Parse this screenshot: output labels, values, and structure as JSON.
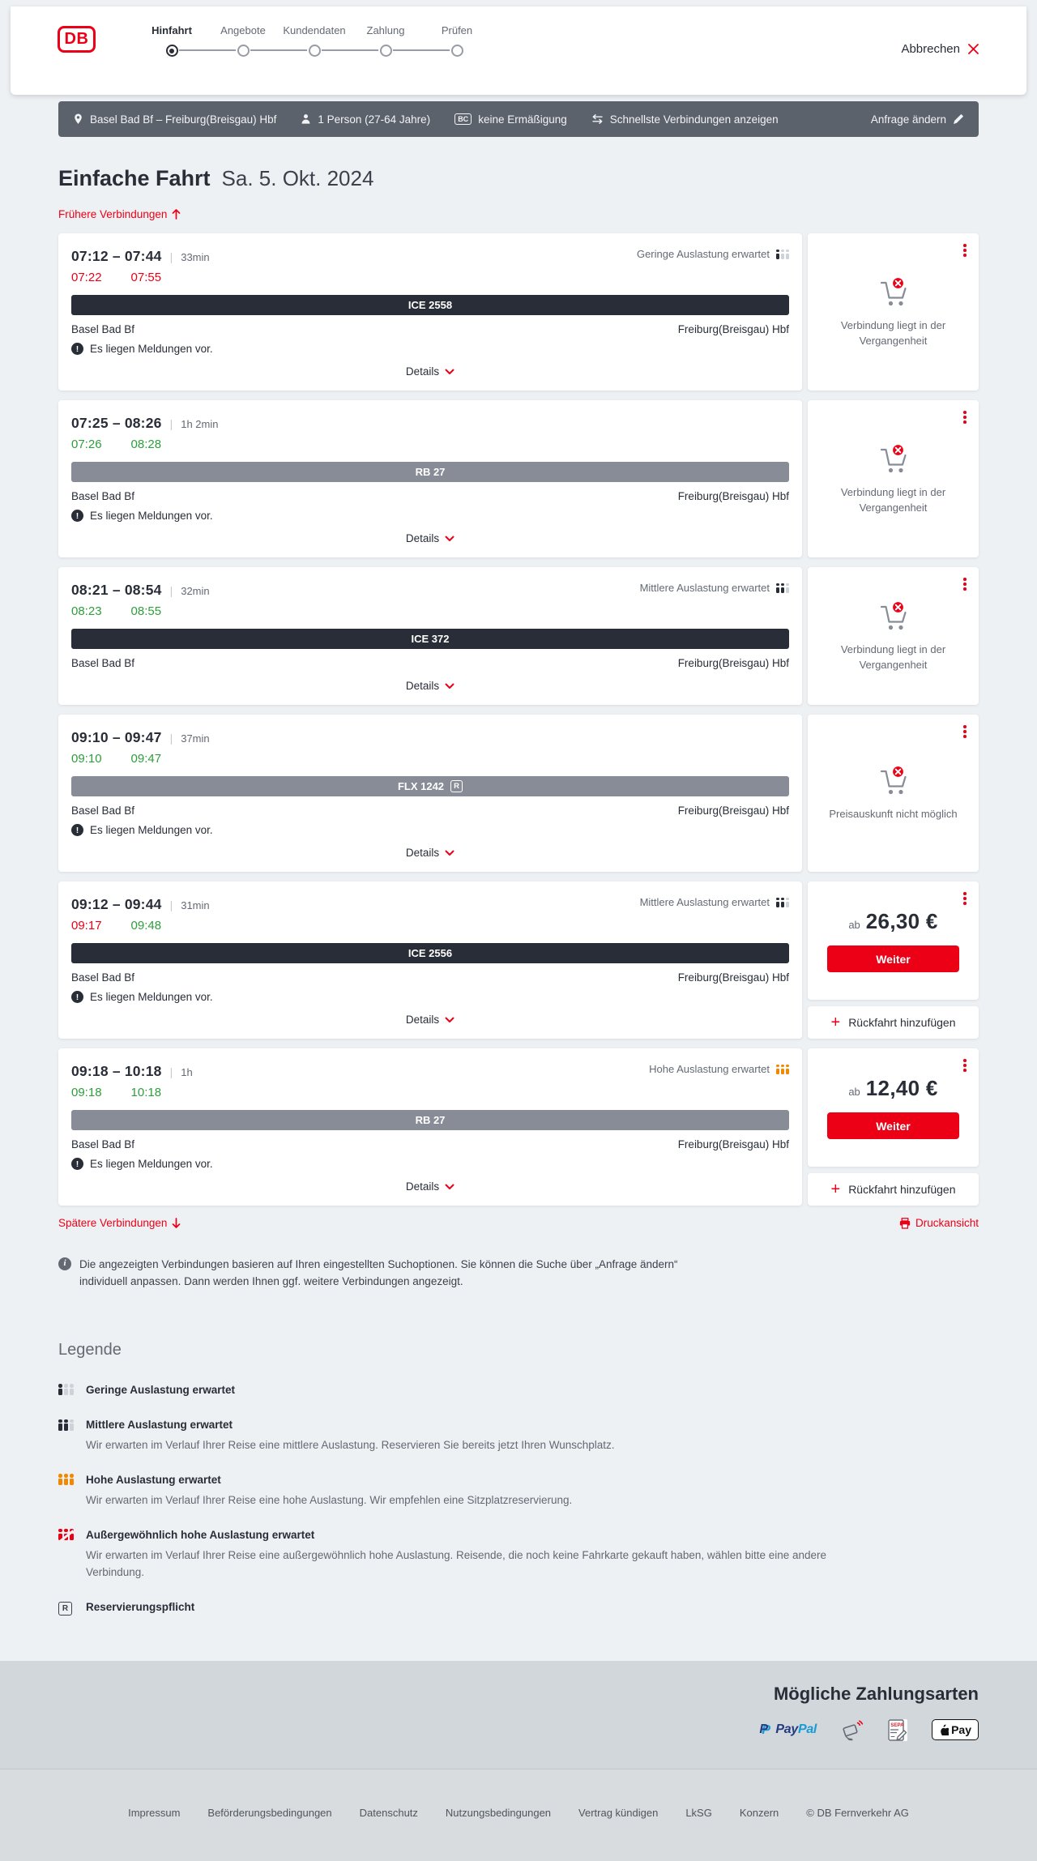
{
  "header": {
    "logo_text": "DB",
    "steps": [
      {
        "label": "Hinfahrt",
        "state": "active"
      },
      {
        "label": "Angebote",
        "state": "upcoming"
      },
      {
        "label": "Kundendaten",
        "state": "upcoming"
      },
      {
        "label": "Zahlung",
        "state": "upcoming"
      },
      {
        "label": "Prüfen",
        "state": "upcoming"
      }
    ],
    "cancel_label": "Abbrechen"
  },
  "summary_bar": {
    "route": "Basel Bad Bf – Freiburg(Breisgau) Hbf",
    "passengers": "1 Person (27-64 Jahre)",
    "bahncard_badge": "BC",
    "discount": "keine Ermäßigung",
    "fastest_connections": "Schnellste Verbindungen anzeigen",
    "change_request": "Anfrage ändern"
  },
  "results": {
    "title": "Einfache Fahrt",
    "date": "Sa. 5. Okt. 2024",
    "earlier_label": "Frühere Verbindungen",
    "later_label": "Spätere Verbindungen",
    "print_label": "Druckansicht",
    "details_label": "Details",
    "messages_text": "Es liegen Meldungen vor.",
    "reservation_badge": "R",
    "price_prefix": "ab",
    "continue_label": "Weiter",
    "add_return_label": "Rückfahrt hinzufügen",
    "info_note": "Die angezeigten Verbindungen basieren auf Ihren eingestellten Suchoptionen. Sie können die Suche über „Anfrage ändern“ individuell anpassen. Dann werden Ihnen ggf. weitere Verbindungen angezeigt."
  },
  "connections": [
    {
      "times": "07:12 – 07:44",
      "duration": "33min",
      "occupancy_label": "Geringe Auslastung erwartet",
      "occupancy_level": "low",
      "rt_departure": {
        "time": "07:22",
        "status": "delayed"
      },
      "rt_arrival": {
        "time": "07:55",
        "status": "delayed"
      },
      "train": {
        "label": "ICE 2558",
        "style": "dark",
        "reservation_required": false
      },
      "from": "Basel Bad Bf",
      "to": "Freiburg(Breisgau) Hbf",
      "has_messages": true,
      "action": {
        "type": "past",
        "text": "Verbindung liegt in der Vergangenheit"
      }
    },
    {
      "times": "07:25 – 08:26",
      "duration": "1h 2min",
      "occupancy_label": "",
      "occupancy_level": "",
      "rt_departure": {
        "time": "07:26",
        "status": "ontime"
      },
      "rt_arrival": {
        "time": "08:28",
        "status": "ontime"
      },
      "train": {
        "label": "RB 27",
        "style": "gray",
        "reservation_required": false
      },
      "from": "Basel Bad Bf",
      "to": "Freiburg(Breisgau) Hbf",
      "has_messages": true,
      "action": {
        "type": "past",
        "text": "Verbindung liegt in der Vergangenheit"
      }
    },
    {
      "times": "08:21 – 08:54",
      "duration": "32min",
      "occupancy_label": "Mittlere Auslastung erwartet",
      "occupancy_level": "mid",
      "rt_departure": {
        "time": "08:23",
        "status": "ontime"
      },
      "rt_arrival": {
        "time": "08:55",
        "status": "ontime"
      },
      "train": {
        "label": "ICE 372",
        "style": "dark",
        "reservation_required": false
      },
      "from": "Basel Bad Bf",
      "to": "Freiburg(Breisgau) Hbf",
      "has_messages": false,
      "action": {
        "type": "past",
        "text": "Verbindung liegt in der Vergangenheit"
      }
    },
    {
      "times": "09:10 – 09:47",
      "duration": "37min",
      "occupancy_label": "",
      "occupancy_level": "",
      "rt_departure": {
        "time": "09:10",
        "status": "ontime"
      },
      "rt_arrival": {
        "time": "09:47",
        "status": "ontime"
      },
      "train": {
        "label": "FLX 1242",
        "style": "gray",
        "reservation_required": true
      },
      "from": "Basel Bad Bf",
      "to": "Freiburg(Breisgau) Hbf",
      "has_messages": true,
      "action": {
        "type": "no_price",
        "text": "Preisauskunft nicht möglich"
      }
    },
    {
      "times": "09:12 – 09:44",
      "duration": "31min",
      "occupancy_label": "Mittlere Auslastung erwartet",
      "occupancy_level": "mid",
      "rt_departure": {
        "time": "09:17",
        "status": "delayed"
      },
      "rt_arrival": {
        "time": "09:48",
        "status": "ontime"
      },
      "train": {
        "label": "ICE 2556",
        "style": "dark",
        "reservation_required": false
      },
      "from": "Basel Bad Bf",
      "to": "Freiburg(Breisgau) Hbf",
      "has_messages": true,
      "action": {
        "type": "price",
        "price": "26,30 €"
      }
    },
    {
      "times": "09:18 – 10:18",
      "duration": "1h",
      "occupancy_label": "Hohe Auslastung erwartet",
      "occupancy_level": "high",
      "rt_departure": {
        "time": "09:18",
        "status": "ontime"
      },
      "rt_arrival": {
        "time": "10:18",
        "status": "ontime"
      },
      "train": {
        "label": "RB 27",
        "style": "gray",
        "reservation_required": false
      },
      "from": "Basel Bad Bf",
      "to": "Freiburg(Breisgau) Hbf",
      "has_messages": true,
      "action": {
        "type": "price",
        "price": "12,40 €"
      }
    }
  ],
  "legend": {
    "title": "Legende",
    "items": [
      {
        "icon": "low",
        "label": "Geringe Auslastung erwartet",
        "desc": ""
      },
      {
        "icon": "mid",
        "label": "Mittlere Auslastung erwartet",
        "desc": "Wir erwarten im Verlauf Ihrer Reise eine mittlere Auslastung. Reservieren Sie bereits jetzt Ihren Wunschplatz."
      },
      {
        "icon": "high",
        "label": "Hohe Auslastung erwartet",
        "desc": "Wir erwarten im Verlauf Ihrer Reise eine hohe Auslastung. Wir empfehlen eine Sitzplatzreservierung."
      },
      {
        "icon": "exceptional",
        "label": "Außergewöhnlich hohe Auslastung erwartet",
        "desc": "Wir erwarten im Verlauf Ihrer Reise eine außergewöhnlich hohe Auslastung. Reisende, die noch keine Fahrkarte gekauft haben, wählen bitte eine andere Verbindung."
      },
      {
        "icon": "reservation",
        "label": "Reservierungspflicht",
        "desc": ""
      }
    ]
  },
  "payments": {
    "title": "Mögliche Zahlungsarten",
    "paypal_text": "PayPal",
    "sepa_text": "SEPA",
    "applepay_text": "Pay"
  },
  "footer": {
    "links": [
      "Impressum",
      "Beförderungsbedingungen",
      "Datenschutz",
      "Nutzungsbedingungen",
      "Vertrag kündigen",
      "LkSG",
      "Konzern"
    ],
    "copyright": "© DB Fernverkehr AG"
  },
  "colors": {
    "brand_red": "#ec0016",
    "delay_red": "#ec0016",
    "ontime_green": "#2d9e3c",
    "high_occupancy_orange": "#f28800",
    "dark_text": "#282d37",
    "summary_bar_bg": "#5c626c"
  }
}
